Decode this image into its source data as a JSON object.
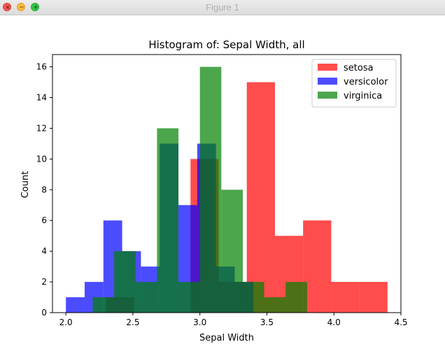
{
  "window": {
    "title": "Figure 1",
    "close_glyph": "×",
    "minimize_glyph": "−",
    "maximize_glyph": "+"
  },
  "chart_data": {
    "type": "bar",
    "title": "Histogram of: Sepal Width, all",
    "xlabel": "Sepal Width",
    "ylabel": "Count",
    "xlim": [
      1.9,
      4.5
    ],
    "ylim": [
      0,
      16.8
    ],
    "xticks": [
      "2.0",
      "2.5",
      "3.0",
      "3.5",
      "4.0",
      "4.5"
    ],
    "xtick_values": [
      2.0,
      2.5,
      3.0,
      3.5,
      4.0,
      4.5
    ],
    "yticks": [
      "0",
      "2",
      "4",
      "6",
      "8",
      "10",
      "12",
      "14",
      "16"
    ],
    "ytick_values": [
      0,
      2,
      4,
      6,
      8,
      10,
      12,
      14,
      16
    ],
    "grid": false,
    "legend_position": "top-right",
    "bar_alpha": 0.7,
    "series": [
      {
        "name": "setosa",
        "color": "#ff0000",
        "bin_edges": [
          2.3,
          2.51,
          2.72,
          2.93,
          3.14,
          3.35,
          3.56,
          3.77,
          3.98,
          4.19,
          4.4
        ],
        "values": [
          1,
          0,
          0,
          10,
          2,
          15,
          5,
          6,
          2,
          2
        ]
      },
      {
        "name": "versicolor",
        "color": "#0000ff",
        "bin_edges": [
          2.0,
          2.14,
          2.28,
          2.42,
          2.56,
          2.7,
          2.84,
          2.98,
          3.12,
          3.26,
          3.4
        ],
        "values": [
          1,
          2,
          6,
          4,
          3,
          11,
          7,
          11,
          3,
          2
        ]
      },
      {
        "name": "virginica",
        "color": "#008000",
        "bin_edges": [
          2.2,
          2.36,
          2.52,
          2.68,
          2.84,
          3.0,
          3.16,
          3.32,
          3.48,
          3.64,
          3.8
        ],
        "values": [
          1,
          4,
          2,
          12,
          2,
          16,
          8,
          2,
          1,
          2
        ]
      }
    ]
  }
}
